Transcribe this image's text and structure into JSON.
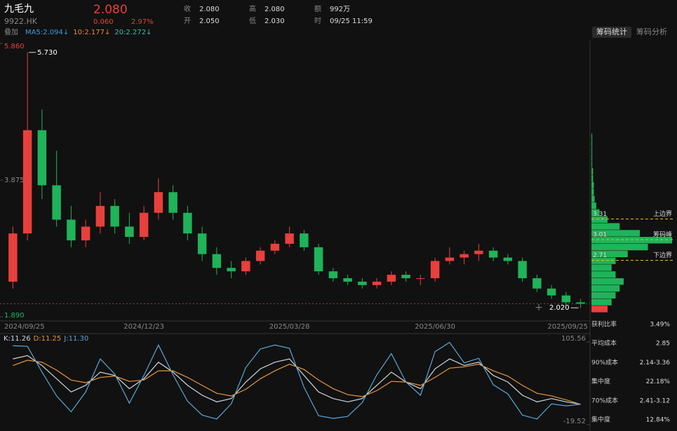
{
  "header": {
    "name": "九毛九",
    "code": "9922.HK",
    "price": {
      "value": 2.08,
      "label": "2.080"
    },
    "change": "0.060",
    "change_pct": "2.97%",
    "fields": [
      {
        "k": "收",
        "v": "2.080"
      },
      {
        "k": "开",
        "v": "2.050"
      },
      {
        "k": "高",
        "v": "2.080"
      },
      {
        "k": "低",
        "v": "2.030"
      },
      {
        "k": "额",
        "v": "992万"
      },
      {
        "k": "时",
        "v": "09/25 11:59"
      }
    ],
    "overlay": "叠加",
    "ma": [
      {
        "label": "MA5:2.094↓",
        "color": "#3b9be0"
      },
      {
        "label": "10:2.177↓",
        "color": "#e68a2e"
      },
      {
        "label": "20:2.272↓",
        "color": "#3fb8b0"
      }
    ],
    "tabs": [
      "筹码统计",
      "筹码分析"
    ]
  },
  "chart_data": [
    {
      "type": "candlestick",
      "up_color": "#e8403c",
      "down_color": "#1fb35a",
      "categories": [
        "2024/09/25",
        null,
        null,
        null,
        null,
        null,
        null,
        null,
        null,
        "2024/12/23",
        null,
        null,
        null,
        null,
        null,
        null,
        null,
        null,
        null,
        "2025/03/28",
        null,
        null,
        null,
        null,
        null,
        null,
        null,
        null,
        null,
        "2025/06/30",
        null,
        null,
        null,
        null,
        null,
        null,
        null,
        null,
        null,
        "2025/09/25"
      ],
      "open": [
        2.4,
        3.1,
        4.6,
        3.8,
        3.3,
        3.0,
        3.2,
        3.5,
        3.2,
        3.05,
        3.4,
        3.7,
        3.4,
        3.1,
        2.8,
        2.6,
        2.55,
        2.7,
        2.85,
        2.95,
        3.1,
        2.9,
        2.55,
        2.45,
        2.4,
        2.35,
        2.4,
        2.5,
        2.45,
        2.45,
        2.7,
        2.75,
        2.8,
        2.85,
        2.75,
        2.7,
        2.45,
        2.3,
        2.2,
        2.1
      ],
      "high": [
        3.2,
        5.73,
        4.9,
        4.3,
        3.5,
        3.3,
        3.7,
        3.6,
        3.4,
        3.5,
        3.9,
        3.8,
        3.5,
        3.2,
        2.9,
        2.7,
        2.75,
        2.9,
        3.0,
        3.2,
        3.15,
        2.95,
        2.6,
        2.5,
        2.45,
        2.45,
        2.55,
        2.55,
        2.5,
        2.75,
        2.9,
        2.85,
        2.95,
        2.9,
        2.8,
        2.75,
        2.5,
        2.35,
        2.25,
        2.15
      ],
      "low": [
        2.3,
        3.0,
        3.6,
        3.2,
        2.9,
        2.9,
        3.1,
        3.1,
        2.95,
        3.0,
        3.3,
        3.3,
        3.0,
        2.7,
        2.5,
        2.45,
        2.5,
        2.65,
        2.8,
        2.9,
        2.85,
        2.5,
        2.4,
        2.35,
        2.3,
        2.3,
        2.35,
        2.4,
        2.35,
        2.4,
        2.65,
        2.65,
        2.7,
        2.7,
        2.65,
        2.4,
        2.25,
        2.15,
        2.05,
        2.02
      ],
      "close": [
        3.1,
        4.6,
        3.8,
        3.3,
        3.0,
        3.2,
        3.5,
        3.2,
        3.05,
        3.4,
        3.7,
        3.4,
        3.1,
        2.8,
        2.6,
        2.55,
        2.7,
        2.85,
        2.95,
        3.1,
        2.9,
        2.55,
        2.45,
        2.4,
        2.35,
        2.4,
        2.5,
        2.45,
        2.45,
        2.7,
        2.75,
        2.8,
        2.85,
        2.75,
        2.7,
        2.45,
        2.3,
        2.2,
        2.1,
        2.08
      ],
      "ylim": [
        1.89,
        5.86
      ],
      "yticks": [
        {
          "value": 5.86,
          "label": "5.860"
        },
        {
          "value": 3.875,
          "label": "3.875"
        },
        {
          "value": 1.89,
          "label": "1.890"
        }
      ],
      "ytick_colors": [
        "#e8403c",
        "#888888",
        "#1fb35a"
      ],
      "annotations": [
        {
          "value": 5.73,
          "label": "5.730",
          "index": 1
        },
        {
          "value": 2.02,
          "label": "2.020",
          "index": 39
        }
      ]
    },
    {
      "type": "line",
      "ylim": [
        -19.52,
        105.56
      ],
      "yticks": [
        105.56,
        -19.52
      ],
      "series": [
        {
          "name": "K:11.26",
          "color": "#cfd8e3",
          "values": [
            80,
            85,
            70,
            50,
            30,
            40,
            60,
            55,
            35,
            50,
            75,
            60,
            40,
            25,
            15,
            20,
            45,
            65,
            75,
            80,
            55,
            30,
            20,
            15,
            20,
            40,
            60,
            45,
            35,
            65,
            80,
            70,
            75,
            55,
            45,
            25,
            15,
            20,
            15,
            11.26
          ]
        },
        {
          "name": "D:11.25",
          "color": "#e8963a",
          "values": [
            70,
            78,
            75,
            63,
            48,
            44,
            52,
            54,
            46,
            48,
            62,
            62,
            52,
            40,
            28,
            24,
            34,
            50,
            62,
            72,
            64,
            48,
            35,
            26,
            23,
            32,
            46,
            45,
            40,
            52,
            66,
            68,
            72,
            62,
            54,
            40,
            28,
            24,
            18,
            11.25
          ]
        },
        {
          "name": "J:11.30",
          "color": "#5aa7d6",
          "values": [
            100,
            99,
            60,
            24,
            0,
            30,
            80,
            57,
            13,
            55,
            101,
            56,
            16,
            -5,
            -11,
            12,
            67,
            95,
            101,
            96,
            37,
            -6,
            -10,
            -7,
            14,
            56,
            88,
            45,
            25,
            91,
            105,
            74,
            81,
            41,
            27,
            -5,
            -11,
            12,
            9,
            11.3
          ]
        }
      ]
    }
  ],
  "chips": {
    "prices": [
      2.0,
      2.1,
      2.2,
      2.3,
      2.4,
      2.5,
      2.6,
      2.7,
      2.8,
      2.9,
      3.0,
      3.1,
      3.2,
      3.3,
      3.4,
      3.5,
      3.6,
      3.7,
      3.8,
      3.9,
      4.0,
      4.1,
      4.2,
      4.3,
      4.4,
      4.5
    ],
    "values": [
      20,
      25,
      30,
      35,
      40,
      30,
      25,
      30,
      45,
      70,
      100,
      60,
      35,
      20,
      10,
      6,
      4,
      3,
      3,
      2,
      2,
      1,
      1,
      1,
      1,
      1
    ],
    "levels": [
      {
        "price": 3.31,
        "name": "上边界"
      },
      {
        "price": 3.01,
        "name": "筹码峰"
      },
      {
        "price": 2.71,
        "name": "下边界"
      }
    ]
  },
  "stats": [
    {
      "label": "获利比率",
      "value": "3.49%"
    },
    {
      "label": "平均成本",
      "value": "2.85"
    },
    {
      "label": "90%成本",
      "value": "2.14-3.36"
    },
    {
      "label": "集中度",
      "value": "22.18%"
    },
    {
      "label": "70%成本",
      "value": "2.41-3.12"
    },
    {
      "label": "集中度",
      "value": "12.84%"
    }
  ]
}
